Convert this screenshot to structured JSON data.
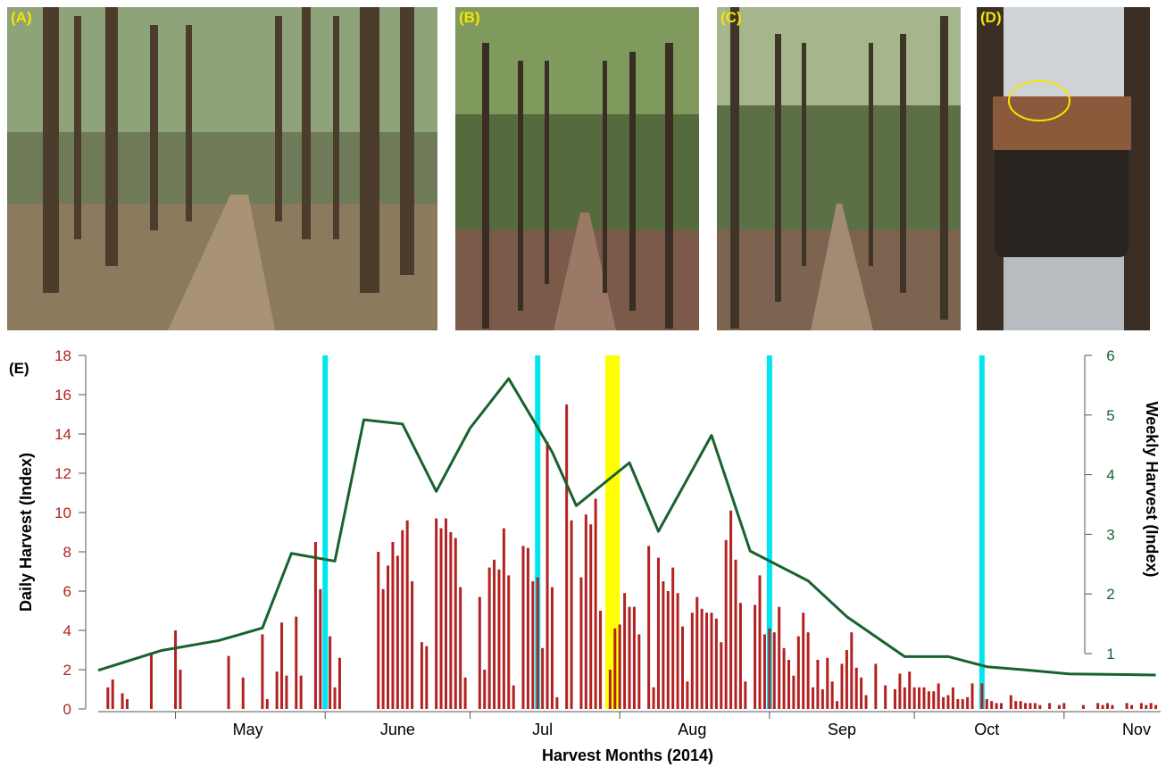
{
  "panels": [
    {
      "label": "(A)",
      "kind": "forest-photo"
    },
    {
      "label": "(B)",
      "kind": "forest-photo"
    },
    {
      "label": "(C)",
      "kind": "forest-photo"
    },
    {
      "label": "(D)",
      "kind": "soil-core-photo"
    }
  ],
  "chart_panel_label": "(E)",
  "colors": {
    "daily_bars": "#b22222",
    "weekly_line": "#17622e",
    "sampling_lines": "#00e5ee",
    "highlight": "#ffff00",
    "label_yellow": "#f2e600"
  },
  "chart_data": {
    "type": "bar",
    "xlabel": "Harvest Months (2014)",
    "ylabel": "Daily Harvest (Index)",
    "y2label": "Weekly Harvest (Index)",
    "ylim": [
      0,
      18
    ],
    "y2lim": [
      0.6,
      6
    ],
    "yticks": [
      "0",
      "2",
      "4",
      "6",
      "8",
      "10",
      "12",
      "14",
      "16",
      "18"
    ],
    "y2ticks": [
      "1",
      "2",
      "3",
      "4",
      "5",
      "6"
    ],
    "xlim": [
      "2014-04-15",
      "2014-11-21"
    ],
    "month_ticks": [
      "2014-05-01",
      "2014-06-01",
      "2014-07-01",
      "2014-08-01",
      "2014-09-01",
      "2014-10-01",
      "2014-11-01"
    ],
    "month_labels": [
      {
        "date": "2014-05-16",
        "label": "May"
      },
      {
        "date": "2014-06-16",
        "label": "June"
      },
      {
        "date": "2014-07-16",
        "label": "Jul"
      },
      {
        "date": "2014-08-16",
        "label": "Aug"
      },
      {
        "date": "2014-09-16",
        "label": "Sep"
      },
      {
        "date": "2014-10-16",
        "label": "Oct"
      },
      {
        "date": "2014-11-16",
        "label": "Nov"
      }
    ],
    "series": [
      {
        "kind": "bar",
        "axis": "left",
        "points": [
          [
            "2014-04-17",
            1.1
          ],
          [
            "2014-04-18",
            1.5
          ],
          [
            "2014-04-20",
            0.8
          ],
          [
            "2014-04-21",
            0.5
          ],
          [
            "2014-04-26",
            2.8
          ],
          [
            "2014-05-01",
            4.0
          ],
          [
            "2014-05-02",
            2.0
          ],
          [
            "2014-05-12",
            2.7
          ],
          [
            "2014-05-15",
            1.6
          ],
          [
            "2014-05-19",
            3.8
          ],
          [
            "2014-05-20",
            0.5
          ],
          [
            "2014-05-22",
            1.9
          ],
          [
            "2014-05-23",
            4.4
          ],
          [
            "2014-05-24",
            1.7
          ],
          [
            "2014-05-26",
            4.7
          ],
          [
            "2014-05-27",
            1.7
          ],
          [
            "2014-05-30",
            8.5
          ],
          [
            "2014-05-31",
            6.1
          ],
          [
            "2014-06-02",
            3.7
          ],
          [
            "2014-06-03",
            1.1
          ],
          [
            "2014-06-04",
            2.6
          ],
          [
            "2014-06-12",
            8.0
          ],
          [
            "2014-06-13",
            6.1
          ],
          [
            "2014-06-14",
            7.3
          ],
          [
            "2014-06-15",
            8.5
          ],
          [
            "2014-06-16",
            7.8
          ],
          [
            "2014-06-17",
            9.1
          ],
          [
            "2014-06-18",
            9.6
          ],
          [
            "2014-06-19",
            6.5
          ],
          [
            "2014-06-21",
            3.4
          ],
          [
            "2014-06-22",
            3.2
          ],
          [
            "2014-05-27",
            0.0
          ],
          [
            "2014-06-24",
            9.7
          ],
          [
            "2014-06-25",
            9.2
          ],
          [
            "2014-06-26",
            9.7
          ],
          [
            "2014-06-27",
            9.0
          ],
          [
            "2014-06-28",
            8.7
          ],
          [
            "2014-06-29",
            6.2
          ],
          [
            "2014-06-30",
            1.6
          ],
          [
            "2014-07-03",
            5.7
          ],
          [
            "2014-07-04",
            2.0
          ],
          [
            "2014-07-05",
            7.2
          ],
          [
            "2014-07-06",
            7.6
          ],
          [
            "2014-07-07",
            7.1
          ],
          [
            "2014-07-08",
            9.2
          ],
          [
            "2014-07-09",
            6.8
          ],
          [
            "2014-07-10",
            1.2
          ],
          [
            "2014-07-12",
            8.3
          ],
          [
            "2014-07-13",
            8.2
          ],
          [
            "2014-07-14",
            6.5
          ],
          [
            "2014-07-15",
            6.7
          ],
          [
            "2014-07-16",
            3.1
          ],
          [
            "2014-07-17",
            13.6
          ],
          [
            "2014-07-18",
            6.2
          ],
          [
            "2014-07-19",
            0.6
          ],
          [
            "2014-07-21",
            15.5
          ],
          [
            "2014-07-22",
            9.6
          ],
          [
            "2014-07-24",
            6.7
          ],
          [
            "2014-07-25",
            9.9
          ],
          [
            "2014-07-26",
            9.4
          ],
          [
            "2014-07-27",
            10.7
          ],
          [
            "2014-07-28",
            5.0
          ],
          [
            "2014-07-30",
            2.0
          ],
          [
            "2014-07-31",
            4.1
          ],
          [
            "2014-08-01",
            4.3
          ],
          [
            "2014-08-02",
            5.9
          ],
          [
            "2014-08-03",
            5.2
          ],
          [
            "2014-08-04",
            5.2
          ],
          [
            "2014-08-05",
            3.8
          ],
          [
            "2014-08-07",
            8.3
          ],
          [
            "2014-08-08",
            1.1
          ],
          [
            "2014-08-09",
            7.7
          ],
          [
            "2014-08-10",
            6.5
          ],
          [
            "2014-08-11",
            6.0
          ],
          [
            "2014-08-12",
            7.2
          ],
          [
            "2014-08-13",
            5.9
          ],
          [
            "2014-08-14",
            4.2
          ],
          [
            "2014-08-15",
            1.4
          ],
          [
            "2014-08-16",
            4.9
          ],
          [
            "2014-08-17",
            5.7
          ],
          [
            "2014-08-18",
            5.1
          ],
          [
            "2014-08-19",
            4.9
          ],
          [
            "2014-08-20",
            4.9
          ],
          [
            "2014-08-21",
            4.6
          ],
          [
            "2014-08-22",
            3.4
          ],
          [
            "2014-08-23",
            8.6
          ],
          [
            "2014-08-24",
            10.1
          ],
          [
            "2014-08-25",
            7.6
          ],
          [
            "2014-08-26",
            5.4
          ],
          [
            "2014-08-27",
            1.4
          ],
          [
            "2014-08-29",
            5.3
          ],
          [
            "2014-08-30",
            6.8
          ],
          [
            "2014-08-31",
            3.8
          ],
          [
            "2014-09-01",
            4.1
          ],
          [
            "2014-09-02",
            3.9
          ],
          [
            "2014-09-03",
            5.2
          ],
          [
            "2014-09-04",
            3.1
          ],
          [
            "2014-09-05",
            2.5
          ],
          [
            "2014-09-06",
            1.7
          ],
          [
            "2014-09-07",
            3.7
          ],
          [
            "2014-09-08",
            4.9
          ],
          [
            "2014-09-09",
            3.9
          ],
          [
            "2014-09-10",
            1.1
          ],
          [
            "2014-09-11",
            2.5
          ],
          [
            "2014-09-12",
            1.0
          ],
          [
            "2014-09-13",
            2.6
          ],
          [
            "2014-09-14",
            1.4
          ],
          [
            "2014-09-15",
            0.4
          ],
          [
            "2014-09-16",
            2.3
          ],
          [
            "2014-09-17",
            3.0
          ],
          [
            "2014-09-18",
            3.9
          ],
          [
            "2014-09-19",
            2.1
          ],
          [
            "2014-09-20",
            1.6
          ],
          [
            "2014-09-21",
            0.7
          ],
          [
            "2014-09-23",
            2.3
          ],
          [
            "2014-09-25",
            1.2
          ],
          [
            "2014-09-27",
            1.0
          ],
          [
            "2014-09-28",
            1.8
          ],
          [
            "2014-09-29",
            1.1
          ],
          [
            "2014-09-30",
            1.9
          ],
          [
            "2014-10-01",
            1.1
          ],
          [
            "2014-10-02",
            1.1
          ],
          [
            "2014-10-03",
            1.1
          ],
          [
            "2014-10-04",
            0.9
          ],
          [
            "2014-10-05",
            0.9
          ],
          [
            "2014-10-06",
            1.3
          ],
          [
            "2014-10-07",
            0.6
          ],
          [
            "2014-10-08",
            0.7
          ],
          [
            "2014-10-09",
            1.1
          ],
          [
            "2014-10-10",
            0.5
          ],
          [
            "2014-10-11",
            0.5
          ],
          [
            "2014-10-12",
            0.6
          ],
          [
            "2014-10-13",
            1.3
          ],
          [
            "2014-10-15",
            1.3
          ],
          [
            "2014-10-16",
            0.5
          ],
          [
            "2014-10-17",
            0.4
          ],
          [
            "2014-10-18",
            0.3
          ],
          [
            "2014-10-19",
            0.3
          ],
          [
            "2014-10-21",
            0.7
          ],
          [
            "2014-10-22",
            0.4
          ],
          [
            "2014-10-23",
            0.4
          ],
          [
            "2014-10-24",
            0.3
          ],
          [
            "2014-10-25",
            0.3
          ],
          [
            "2014-10-26",
            0.3
          ],
          [
            "2014-10-27",
            0.2
          ],
          [
            "2014-10-29",
            0.3
          ],
          [
            "2014-10-31",
            0.2
          ],
          [
            "2014-11-01",
            0.3
          ],
          [
            "2014-11-05",
            0.2
          ],
          [
            "2014-11-08",
            0.3
          ],
          [
            "2014-11-09",
            0.2
          ],
          [
            "2014-11-10",
            0.3
          ],
          [
            "2014-11-11",
            0.2
          ],
          [
            "2014-11-14",
            0.3
          ],
          [
            "2014-11-15",
            0.2
          ],
          [
            "2014-11-17",
            0.3
          ],
          [
            "2014-11-18",
            0.2
          ],
          [
            "2014-11-19",
            0.3
          ],
          [
            "2014-11-20",
            0.2
          ]
        ]
      },
      {
        "kind": "line",
        "axis": "right",
        "points": [
          [
            "2014-04-15",
            0.72
          ],
          [
            "2014-04-28",
            1.05
          ],
          [
            "2014-05-10",
            1.22
          ],
          [
            "2014-05-19",
            1.43
          ],
          [
            "2014-05-25",
            2.68
          ],
          [
            "2014-06-03",
            2.55
          ],
          [
            "2014-06-09",
            4.92
          ],
          [
            "2014-06-17",
            4.85
          ],
          [
            "2014-06-24",
            3.72
          ],
          [
            "2014-07-01",
            4.78
          ],
          [
            "2014-07-09",
            5.61
          ],
          [
            "2014-07-18",
            4.38
          ],
          [
            "2014-07-23",
            3.48
          ],
          [
            "2014-08-03",
            4.2
          ],
          [
            "2014-08-09",
            3.05
          ],
          [
            "2014-08-20",
            4.66
          ],
          [
            "2014-08-28",
            2.72
          ],
          [
            "2014-09-09",
            2.22
          ],
          [
            "2014-09-17",
            1.62
          ],
          [
            "2014-09-29",
            0.95
          ],
          [
            "2014-10-08",
            0.95
          ],
          [
            "2014-10-16",
            0.78
          ],
          [
            "2014-10-25",
            0.72
          ],
          [
            "2014-11-02",
            0.66
          ],
          [
            "2014-11-12",
            0.65
          ],
          [
            "2014-11-20",
            0.64
          ]
        ]
      }
    ],
    "vertical_lines": [
      "2014-06-01",
      "2014-07-15",
      "2014-09-01",
      "2014-10-15"
    ],
    "highlight_span": [
      "2014-07-29",
      "2014-08-01"
    ]
  }
}
